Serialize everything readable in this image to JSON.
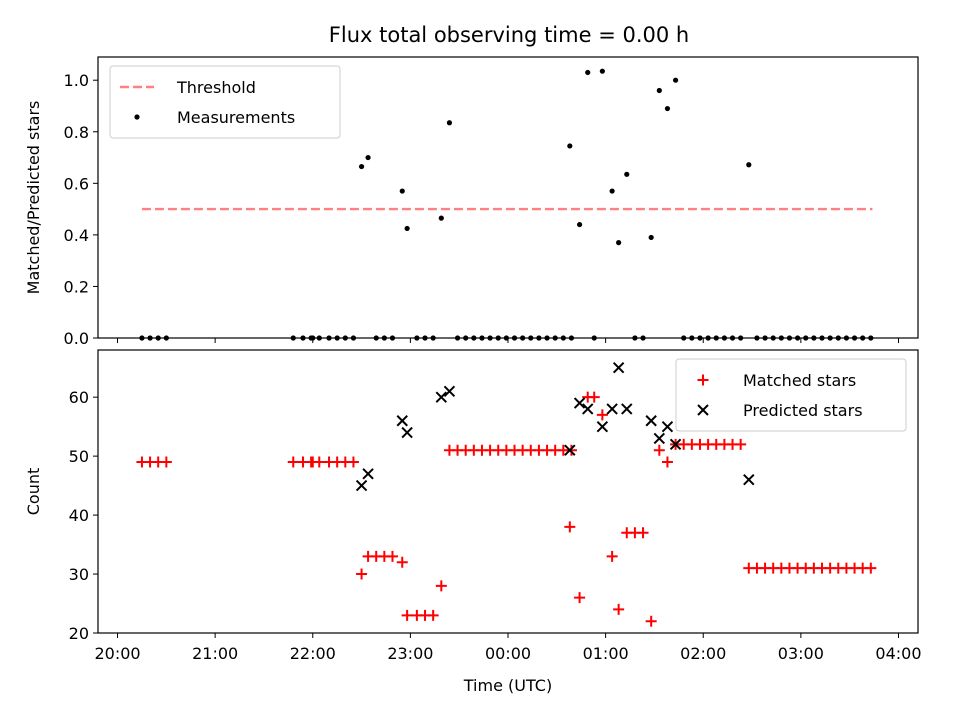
{
  "figure_title": "Flux total observing time = 0.00 h",
  "chart_data": [
    {
      "type": "scatter",
      "ylabel": "Matched/Predicted stars",
      "xlim": [
        "20:00",
        "04:00"
      ],
      "ylim": [
        0,
        1.09
      ],
      "yticks": [
        "0.0",
        "0.2",
        "0.4",
        "0.6",
        "0.8",
        "1.0"
      ],
      "legend_position": "upper-left",
      "series": [
        {
          "name": "Threshold",
          "style": "dashed-line",
          "color": "#ff8080",
          "points": [
            [
              "20:15",
              0.5
            ],
            [
              "03:44",
              0.5
            ]
          ]
        },
        {
          "name": "Measurements",
          "style": "dot",
          "color": "#000000",
          "points": [
            [
              "20:15",
              0
            ],
            [
              "20:20",
              0
            ],
            [
              "20:25",
              0
            ],
            [
              "20:30",
              0
            ],
            [
              "21:48",
              0
            ],
            [
              "21:54",
              0
            ],
            [
              "21:59",
              0
            ],
            [
              "22:00",
              0
            ],
            [
              "22:04",
              0
            ],
            [
              "22:10",
              0
            ],
            [
              "22:15",
              0
            ],
            [
              "22:20",
              0
            ],
            [
              "22:25",
              0
            ],
            [
              "22:30",
              0.665
            ],
            [
              "22:34",
              0.7
            ],
            [
              "22:39",
              0
            ],
            [
              "22:44",
              0
            ],
            [
              "22:49",
              0
            ],
            [
              "22:55",
              0.57
            ],
            [
              "22:58",
              0.425
            ],
            [
              "23:04",
              0
            ],
            [
              "23:09",
              0
            ],
            [
              "23:14",
              0
            ],
            [
              "23:19",
              0.465
            ],
            [
              "23:24",
              0.835
            ],
            [
              "23:29",
              0
            ],
            [
              "23:34",
              0
            ],
            [
              "23:39",
              0
            ],
            [
              "23:44",
              0
            ],
            [
              "23:49",
              0
            ],
            [
              "23:54",
              0
            ],
            [
              "23:59",
              0
            ],
            [
              "00:04",
              0
            ],
            [
              "00:09",
              0
            ],
            [
              "00:14",
              0
            ],
            [
              "00:19",
              0
            ],
            [
              "00:24",
              0
            ],
            [
              "00:29",
              0
            ],
            [
              "00:34",
              0
            ],
            [
              "00:39",
              0
            ],
            [
              "00:38",
              0.745
            ],
            [
              "00:44",
              0.44
            ],
            [
              "00:49",
              1.03
            ],
            [
              "00:53",
              0
            ],
            [
              "00:58",
              1.035
            ],
            [
              "01:04",
              0.57
            ],
            [
              "01:08",
              0.37
            ],
            [
              "01:13",
              0.635
            ],
            [
              "01:18",
              0
            ],
            [
              "01:23",
              0
            ],
            [
              "01:28",
              0.39
            ],
            [
              "01:33",
              0.96
            ],
            [
              "01:38",
              0.89
            ],
            [
              "01:43",
              1.0
            ],
            [
              "01:48",
              0
            ],
            [
              "01:53",
              0
            ],
            [
              "01:58",
              0
            ],
            [
              "02:03",
              0
            ],
            [
              "02:08",
              0
            ],
            [
              "02:13",
              0
            ],
            [
              "02:18",
              0
            ],
            [
              "02:23",
              0
            ],
            [
              "02:28",
              0.672
            ],
            [
              "02:33",
              0
            ],
            [
              "02:38",
              0
            ],
            [
              "02:43",
              0
            ],
            [
              "02:48",
              0
            ],
            [
              "02:53",
              0
            ],
            [
              "02:58",
              0
            ],
            [
              "03:03",
              0
            ],
            [
              "03:08",
              0
            ],
            [
              "03:13",
              0
            ],
            [
              "03:18",
              0
            ],
            [
              "03:23",
              0
            ],
            [
              "03:28",
              0
            ],
            [
              "03:33",
              0
            ],
            [
              "03:38",
              0
            ],
            [
              "03:43",
              0
            ]
          ]
        }
      ]
    },
    {
      "type": "scatter",
      "xlabel": "Time (UTC)",
      "ylabel": "Count",
      "xlim": [
        "20:00",
        "04:00"
      ],
      "ylim": [
        20,
        68
      ],
      "xticks": [
        "20:00",
        "21:00",
        "22:00",
        "23:00",
        "00:00",
        "01:00",
        "02:00",
        "03:00",
        "04:00"
      ],
      "yticks": [
        "20",
        "30",
        "40",
        "50",
        "60"
      ],
      "legend_position": "upper-right",
      "series": [
        {
          "name": "Matched stars",
          "style": "plus",
          "color": "#ff0000",
          "points": [
            [
              "20:15",
              49
            ],
            [
              "20:20",
              49
            ],
            [
              "20:25",
              49
            ],
            [
              "20:30",
              49
            ],
            [
              "21:48",
              49
            ],
            [
              "21:54",
              49
            ],
            [
              "21:59",
              49
            ],
            [
              "22:00",
              49
            ],
            [
              "22:04",
              49
            ],
            [
              "22:10",
              49
            ],
            [
              "22:15",
              49
            ],
            [
              "22:20",
              49
            ],
            [
              "22:25",
              49
            ],
            [
              "22:30",
              30
            ],
            [
              "22:34",
              33
            ],
            [
              "22:39",
              33
            ],
            [
              "22:44",
              33
            ],
            [
              "22:49",
              33
            ],
            [
              "22:55",
              32
            ],
            [
              "22:58",
              23
            ],
            [
              "23:04",
              23
            ],
            [
              "23:09",
              23
            ],
            [
              "23:14",
              23
            ],
            [
              "23:19",
              28
            ],
            [
              "23:24",
              51
            ],
            [
              "23:29",
              51
            ],
            [
              "23:34",
              51
            ],
            [
              "23:39",
              51
            ],
            [
              "23:44",
              51
            ],
            [
              "23:49",
              51
            ],
            [
              "23:54",
              51
            ],
            [
              "23:59",
              51
            ],
            [
              "00:04",
              51
            ],
            [
              "00:09",
              51
            ],
            [
              "00:14",
              51
            ],
            [
              "00:19",
              51
            ],
            [
              "00:24",
              51
            ],
            [
              "00:29",
              51
            ],
            [
              "00:34",
              51
            ],
            [
              "00:39",
              51
            ],
            [
              "00:38",
              38
            ],
            [
              "00:44",
              26
            ],
            [
              "00:49",
              60
            ],
            [
              "00:53",
              60
            ],
            [
              "00:58",
              57
            ],
            [
              "01:04",
              33
            ],
            [
              "01:08",
              24
            ],
            [
              "01:13",
              37
            ],
            [
              "01:18",
              37
            ],
            [
              "01:23",
              37
            ],
            [
              "01:28",
              22
            ],
            [
              "01:33",
              51
            ],
            [
              "01:38",
              49
            ],
            [
              "01:43",
              52
            ],
            [
              "01:48",
              52
            ],
            [
              "01:53",
              52
            ],
            [
              "01:58",
              52
            ],
            [
              "02:03",
              52
            ],
            [
              "02:08",
              52
            ],
            [
              "02:13",
              52
            ],
            [
              "02:18",
              52
            ],
            [
              "02:23",
              52
            ],
            [
              "02:28",
              31
            ],
            [
              "02:33",
              31
            ],
            [
              "02:38",
              31
            ],
            [
              "02:43",
              31
            ],
            [
              "02:48",
              31
            ],
            [
              "02:53",
              31
            ],
            [
              "02:58",
              31
            ],
            [
              "03:03",
              31
            ],
            [
              "03:08",
              31
            ],
            [
              "03:13",
              31
            ],
            [
              "03:18",
              31
            ],
            [
              "03:23",
              31
            ],
            [
              "03:28",
              31
            ],
            [
              "03:33",
              31
            ],
            [
              "03:38",
              31
            ],
            [
              "03:43",
              31
            ]
          ]
        },
        {
          "name": "Predicted stars",
          "style": "x",
          "color": "#000000",
          "points": [
            [
              "22:30",
              45
            ],
            [
              "22:34",
              47
            ],
            [
              "22:55",
              56
            ],
            [
              "22:58",
              54
            ],
            [
              "23:19",
              60
            ],
            [
              "23:24",
              61
            ],
            [
              "00:38",
              51
            ],
            [
              "00:44",
              59
            ],
            [
              "00:49",
              58
            ],
            [
              "00:58",
              55
            ],
            [
              "01:04",
              58
            ],
            [
              "01:08",
              65
            ],
            [
              "01:13",
              58
            ],
            [
              "01:28",
              56
            ],
            [
              "01:33",
              53
            ],
            [
              "01:38",
              55
            ],
            [
              "01:43",
              52
            ],
            [
              "02:28",
              46
            ]
          ]
        }
      ]
    }
  ]
}
